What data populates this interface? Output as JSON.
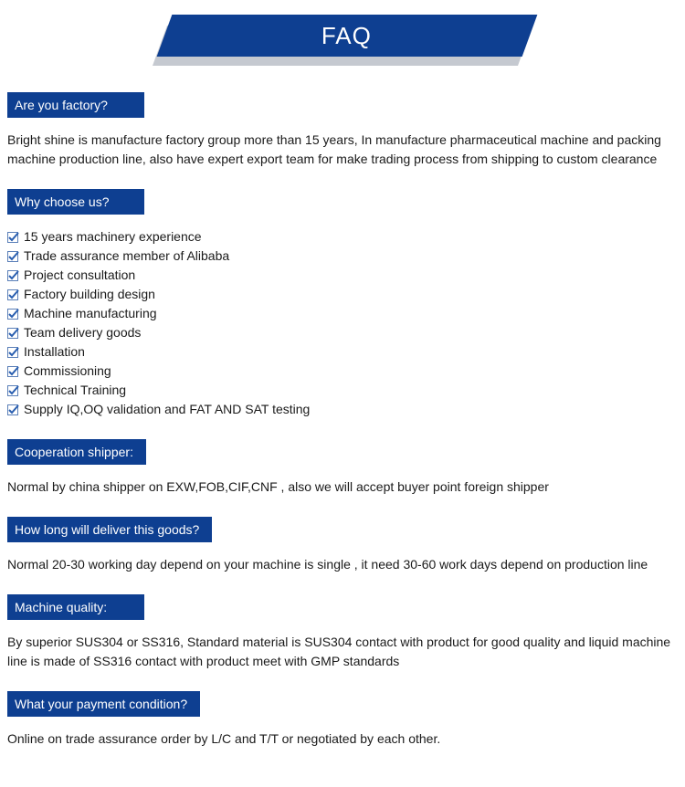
{
  "colors": {
    "brand": "#0e3f91",
    "shadow": "#c5c9d0",
    "check": "#2a5fb0",
    "text": "#1a1a1a",
    "white": "#ffffff"
  },
  "banner": {
    "title": "FAQ"
  },
  "sections": {
    "s1": {
      "heading": "Are you factory?",
      "text": "Bright shine is manufacture factory group more than 15 years, In manufacture pharmaceutical machine and packing machine production line, also have expert export team for make trading process from shipping to custom clearance"
    },
    "s2": {
      "heading": "Why choose us?",
      "items": [
        "15 years machinery experience",
        "Trade assurance member of Alibaba",
        "Project consultation",
        "Factory building design",
        "Machine manufacturing",
        "Team delivery goods",
        "Installation",
        "Commissioning",
        "Technical Training",
        "Supply IQ,OQ validation and FAT AND SAT testing"
      ]
    },
    "s3": {
      "heading": "Cooperation shipper:",
      "text": "Normal by china shipper on EXW,FOB,CIF,CNF , also we will accept buyer point foreign shipper"
    },
    "s4": {
      "heading": "How long will deliver this goods?",
      "text": "Normal 20-30 working day depend on your machine is single , it need 30-60 work days depend on production line"
    },
    "s5": {
      "heading": "Machine quality:",
      "text": "By superior SUS304 or SS316, Standard material is SUS304 contact with product for good quality and  liquid machine line is made of SS316 contact with product meet with GMP standards"
    },
    "s6": {
      "heading": "What your payment condition?",
      "text": "Online on trade assurance order by L/C and T/T or negotiated by each other."
    }
  }
}
